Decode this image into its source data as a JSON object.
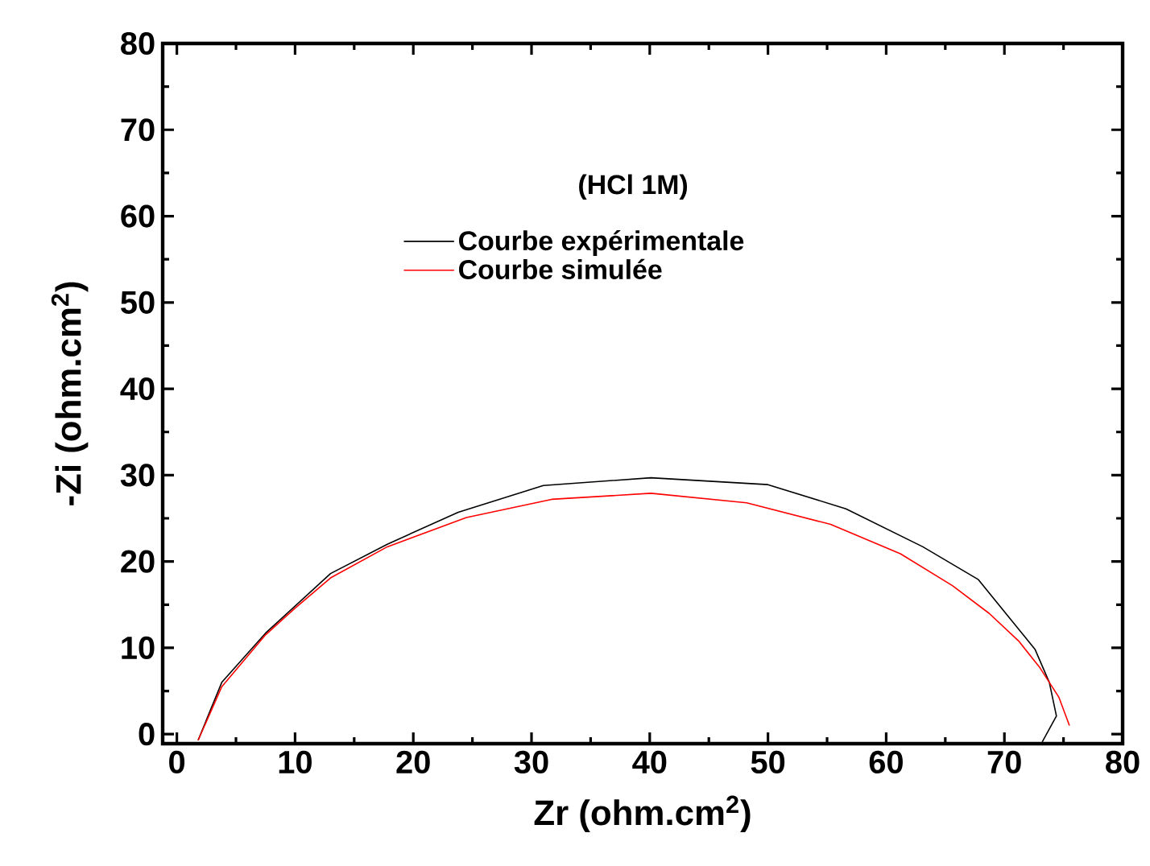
{
  "chart_data": {
    "type": "line",
    "xlabel": "Zr (ohm.cm$^{2}$)",
    "ylabel": "-Zi (ohm.cm$^{2}$)",
    "annotations": [
      "(HCl 1M)"
    ],
    "xlim": [
      -1.2,
      80
    ],
    "ylim": [
      -1.1,
      80
    ],
    "xticks": [
      0,
      10,
      20,
      30,
      40,
      50,
      60,
      70,
      80
    ],
    "yticks": [
      0,
      10,
      20,
      30,
      40,
      50,
      60,
      70,
      80
    ],
    "legend": "top",
    "grid": false,
    "series": [
      {
        "name": "Courbe expérimentale",
        "color": "#000000",
        "x": [
          1.8,
          3.8,
          7.5,
          13,
          17.8,
          23.8,
          31,
          40.1,
          50,
          56.6,
          63.1,
          67.8,
          72.6,
          73.8,
          74.4,
          73.2
        ],
        "values": [
          -0.7,
          6,
          11.7,
          18.6,
          22,
          25.7,
          28.8,
          29.7,
          28.9,
          26.1,
          21.7,
          17.9,
          9.8,
          6,
          2.1,
          -0.9
        ]
      },
      {
        "name": "Courbe simulée",
        "color": "#ff0000",
        "x": [
          1.8,
          3.8,
          7.5,
          10,
          13,
          17.8,
          24.5,
          31.7,
          40.1,
          48.2,
          55.3,
          61.2,
          65.6,
          68.7,
          71.2,
          73,
          74.6,
          75.5
        ],
        "values": [
          -0.7,
          5.5,
          11.5,
          14.6,
          18.1,
          21.7,
          25.1,
          27.2,
          27.9,
          26.8,
          24.3,
          20.9,
          17.2,
          14,
          10.8,
          7.7,
          4.3,
          1
        ]
      }
    ]
  }
}
